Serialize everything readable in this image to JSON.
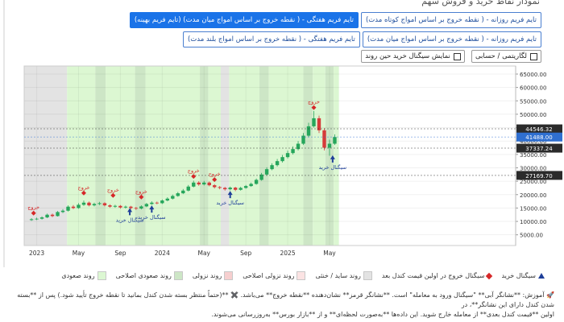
{
  "ui": {
    "title": "نمودار نقاط خرید و فروش سهم",
    "tabs_row1": [
      {
        "label": "تایم فریم روزانه - ( نقطه خروج بر اساس امواج کوتاه مدت)",
        "active": false
      },
      {
        "label": "تایم فریم هفتگی - ( نقطه خروج بر اساس امواج میان مدت) (تایم فریم بهینه)",
        "active": true
      }
    ],
    "tabs_row2": [
      {
        "label": "تایم فریم روزانه - ( نقطه خروج بر اساس امواج میان مدت)",
        "active": false
      },
      {
        "label": "تایم فریم هفتگی - ( نقطه خروج بر اساس امواج بلند مدت)",
        "active": false
      }
    ],
    "toggles": [
      "لگاریتمی / حسابی",
      "نمایش سیگنال خرید حین روند"
    ],
    "note": [
      "🚀 آموزش: **نشانگر آبی** \"سیگنال ورود به معامله\" است. **نشانگر قرمز** نشان‌دهنده **نقطه خروج** می‌باشد. ✖️ **(حتماً منتظر بسته شدن کندل بمانید تا نقطه خروج تأیید شود.) پس از **بسته شدن کندل دارای این نشانگر**، در",
      "اولین **قیمت کندل بعدی** از معامله خارج شوید. این داده‌ها **به‌صورت لحظه‌ای** و از **بازار بورس** به‌روزرسانی می‌شوند."
    ]
  },
  "chart_data": {
    "type": "candlestick",
    "log_scale": false,
    "grid": true,
    "up_color": "#26a65b",
    "down_color": "#d63a3a",
    "x": [
      -0.5,
      0,
      0.5,
      1,
      1.5,
      2,
      2.5,
      3,
      3.5,
      4,
      4.5,
      5,
      5.5,
      6,
      6.5,
      7,
      7.5,
      8,
      8.5,
      9,
      9.5,
      10,
      10.5,
      11,
      11.5,
      12,
      12.5,
      13,
      13.5,
      14,
      14.5,
      15,
      15.5,
      16,
      16.5,
      17,
      17.5,
      18,
      18.5,
      19,
      19.5,
      20,
      20.5,
      21,
      21.5,
      22,
      22.5,
      23,
      23.5,
      24,
      24.5,
      25,
      25.5,
      26,
      26.5,
      27,
      27.5,
      28,
      28.5
    ],
    "open": [
      10500,
      10800,
      11000,
      11500,
      12500,
      12000,
      13500,
      14000,
      15500,
      15000,
      16200,
      17000,
      16000,
      16500,
      16800,
      16000,
      15500,
      15800,
      15200,
      15500,
      15000,
      14800,
      15600,
      16500,
      17000,
      16800,
      17800,
      18500,
      19500,
      20500,
      21500,
      23000,
      24500,
      23800,
      24500,
      23500,
      22800,
      22500,
      22000,
      22600,
      21800,
      22500,
      23200,
      24000,
      25500,
      27500,
      29500,
      31000,
      32500,
      34000,
      35500,
      37000,
      39000,
      42000,
      45500,
      48500,
      44000,
      37500,
      39000
    ],
    "high": [
      11200,
      11400,
      11900,
      12900,
      12900,
      13900,
      14600,
      16000,
      16100,
      16800,
      17800,
      17400,
      17000,
      17300,
      17100,
      16400,
      16200,
      16100,
      15900,
      15800,
      15400,
      16000,
      16900,
      17500,
      17400,
      18200,
      19000,
      20000,
      21000,
      22100,
      23600,
      25200,
      25000,
      25100,
      24900,
      23900,
      23200,
      22900,
      23000,
      22900,
      22900,
      23600,
      24500,
      26000,
      28100,
      30200,
      31700,
      33300,
      34800,
      36400,
      38000,
      40000,
      43000,
      46800,
      51200,
      49500,
      44800,
      40500,
      42500
    ],
    "low": [
      10200,
      10500,
      10700,
      11200,
      11600,
      11800,
      13100,
      13700,
      14600,
      14700,
      15800,
      15600,
      15600,
      16100,
      15600,
      15100,
      15100,
      14800,
      14800,
      14500,
      14300,
      14500,
      15300,
      16200,
      16400,
      16500,
      17500,
      18200,
      19200,
      20200,
      21200,
      22700,
      23300,
      23400,
      23100,
      22300,
      22000,
      21500,
      21600,
      21300,
      21500,
      22200,
      22900,
      23700,
      25200,
      27100,
      29100,
      30500,
      32000,
      33500,
      35000,
      36500,
      38500,
      41500,
      45000,
      43000,
      36500,
      34500,
      38500
    ],
    "close": [
      10800,
      11000,
      11500,
      12500,
      12000,
      13500,
      14000,
      15500,
      15000,
      16200,
      17000,
      16000,
      16500,
      16800,
      16000,
      15500,
      15800,
      15200,
      15500,
      15000,
      14800,
      15600,
      16500,
      17000,
      16800,
      17800,
      18500,
      19500,
      20500,
      21500,
      23000,
      24500,
      23800,
      24500,
      23500,
      22800,
      22500,
      22000,
      22600,
      21800,
      22500,
      23200,
      24000,
      25500,
      27500,
      29500,
      31000,
      32500,
      34000,
      35500,
      37000,
      39000,
      42000,
      45500,
      48500,
      44000,
      37500,
      39000,
      41488
    ],
    "xlim": [
      -1.2,
      45.8
    ],
    "xticks": [
      {
        "value": 0,
        "label": "2023"
      },
      {
        "value": 4,
        "label": "May"
      },
      {
        "value": 8,
        "label": "Sep"
      },
      {
        "value": 12,
        "label": "2024"
      },
      {
        "value": 16,
        "label": "May"
      },
      {
        "value": 20,
        "label": "Sep"
      },
      {
        "value": 24,
        "label": "2025"
      },
      {
        "value": 28,
        "label": "May"
      }
    ],
    "ylim": [
      1000,
      68000
    ],
    "yticks": [
      {
        "value": 5000,
        "label": "5000.00"
      },
      {
        "value": 10000,
        "label": "10000.00"
      },
      {
        "value": 15000,
        "label": "15000.00"
      },
      {
        "value": 20000,
        "label": "20000.00"
      },
      {
        "value": 25000,
        "label": "25000.00"
      },
      {
        "value": 30000,
        "label": "30000.00"
      },
      {
        "value": 35000,
        "label": "35000.00"
      },
      {
        "value": 40000,
        "label": "40000.00"
      },
      {
        "value": 45000,
        "label": "45000.00"
      },
      {
        "value": 50000,
        "label": "50000.00"
      },
      {
        "value": 55000,
        "label": "55000.00"
      },
      {
        "value": 60000,
        "label": "60000.00"
      },
      {
        "value": 65000,
        "label": "65000.00"
      }
    ],
    "price_lines": [
      {
        "value": 44546.32,
        "label": "44546.32",
        "color": "#2b2b2b"
      },
      {
        "value": 41488,
        "label": "41488.00",
        "color": "#2f6fd0"
      },
      {
        "value": 37337.24,
        "label": "37337.24",
        "color": "#2b2b2b"
      },
      {
        "value": 27169.7,
        "label": "27169.70",
        "color": "#2b2b2b"
      }
    ],
    "regions": [
      {
        "start": -1.2,
        "end": 2.9,
        "color": "#e3e3e3"
      },
      {
        "start": 2.9,
        "end": 5.6,
        "color": "#dcf7d2"
      },
      {
        "start": 5.6,
        "end": 6.6,
        "color": "#cde6c6"
      },
      {
        "start": 6.6,
        "end": 9.4,
        "color": "#dcf7d2"
      },
      {
        "start": 9.4,
        "end": 10.4,
        "color": "#cde6c6"
      },
      {
        "start": 10.4,
        "end": 15.6,
        "color": "#dcf7d2"
      },
      {
        "start": 15.6,
        "end": 16.4,
        "color": "#cde6c6"
      },
      {
        "start": 16.4,
        "end": 17.6,
        "color": "#dcf7d2"
      },
      {
        "start": 17.6,
        "end": 18.4,
        "color": "#e3e3e3"
      },
      {
        "start": 18.4,
        "end": 21.3,
        "color": "#dcf7d2"
      },
      {
        "start": 21.3,
        "end": 22.2,
        "color": "#cde6c6"
      },
      {
        "start": 22.2,
        "end": 25.5,
        "color": "#dcf7d2"
      },
      {
        "start": 25.5,
        "end": 26.4,
        "color": "#cde6c6"
      },
      {
        "start": 26.4,
        "end": 27.6,
        "color": "#dcf7d2"
      },
      {
        "start": 27.6,
        "end": 28.4,
        "color": "#cde6c6"
      },
      {
        "start": 28.4,
        "end": 28.9,
        "color": "#dcf7d2"
      }
    ],
    "exit_label": "خروج",
    "exit_color": "#d62728",
    "exit_signals": [
      {
        "x": -0.3,
        "y": 13100
      },
      {
        "x": 4.5,
        "y": 20600
      },
      {
        "x": 7.3,
        "y": 19700
      },
      {
        "x": 10,
        "y": 19100
      },
      {
        "x": 15,
        "y": 26800
      },
      {
        "x": 17,
        "y": 25600
      },
      {
        "x": 26.5,
        "y": 52500
      }
    ],
    "buy_label": "سیگنال خرید",
    "buy_color": "#1f3f99",
    "buy_signals": [
      {
        "x": 8.9,
        "y": 13800
      },
      {
        "x": 11,
        "y": 14800
      },
      {
        "x": 18.5,
        "y": 20200
      },
      {
        "x": 28.3,
        "y": 33500
      }
    ],
    "legend": [
      {
        "label": "روند صعودی",
        "color": "#dcf7d2",
        "shape": "square"
      },
      {
        "label": "روند صعودی اصلاحی",
        "color": "#cde6c6",
        "shape": "square"
      },
      {
        "label": "روند نزولی",
        "color": "#f6cfcf",
        "shape": "square"
      },
      {
        "label": "روند نزولی اصلاحی",
        "color": "#fbe3e3",
        "shape": "square"
      },
      {
        "label": "روند ساید / خنثی",
        "color": "#e3e3e3",
        "shape": "square"
      },
      {
        "label": "سیگنال خروج در اولین قیمت کندل بعد",
        "color": "#d62728",
        "shape": "diamond"
      },
      {
        "label": "سیگنال خرید",
        "color": "#1f3f99",
        "shape": "triangle"
      }
    ]
  }
}
